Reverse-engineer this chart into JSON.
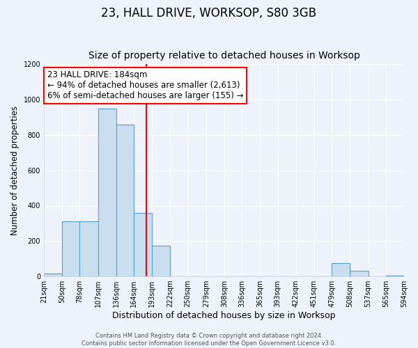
{
  "title": "23, HALL DRIVE, WORKSOP, S80 3GB",
  "subtitle": "Size of property relative to detached houses in Worksop",
  "xlabel": "Distribution of detached houses by size in Worksop",
  "ylabel": "Number of detached properties",
  "bin_edges": [
    21,
    50,
    78,
    107,
    136,
    164,
    193,
    222,
    250,
    279,
    308,
    336,
    365,
    393,
    422,
    451,
    479,
    508,
    537,
    565,
    594
  ],
  "bar_heights": [
    15,
    310,
    310,
    950,
    860,
    360,
    175,
    0,
    0,
    0,
    0,
    0,
    0,
    0,
    0,
    0,
    75,
    30,
    0,
    5
  ],
  "bar_color": "#c9dff0",
  "bar_edge_color": "#5b9bd5",
  "vline_x": 184,
  "vline_color": "red",
  "annotation_text": "23 HALL DRIVE: 184sqm\n← 94% of detached houses are smaller (2,613)\n6% of semi-detached houses are larger (155) →",
  "annotation_box_color": "white",
  "annotation_box_edge_color": "red",
  "ylim": [
    0,
    1200
  ],
  "yticks": [
    0,
    200,
    400,
    600,
    800,
    1000,
    1200
  ],
  "footer_text": "Contains HM Land Registry data © Crown copyright and database right 2024.\nContains public sector information licensed under the Open Government Licence v3.0.",
  "background_color": "#eef2fb",
  "title_fontsize": 12,
  "subtitle_fontsize": 10,
  "annotation_fontsize": 8.5,
  "tick_fontsize": 7,
  "ylabel_fontsize": 8.5,
  "xlabel_fontsize": 9,
  "footer_fontsize": 6
}
